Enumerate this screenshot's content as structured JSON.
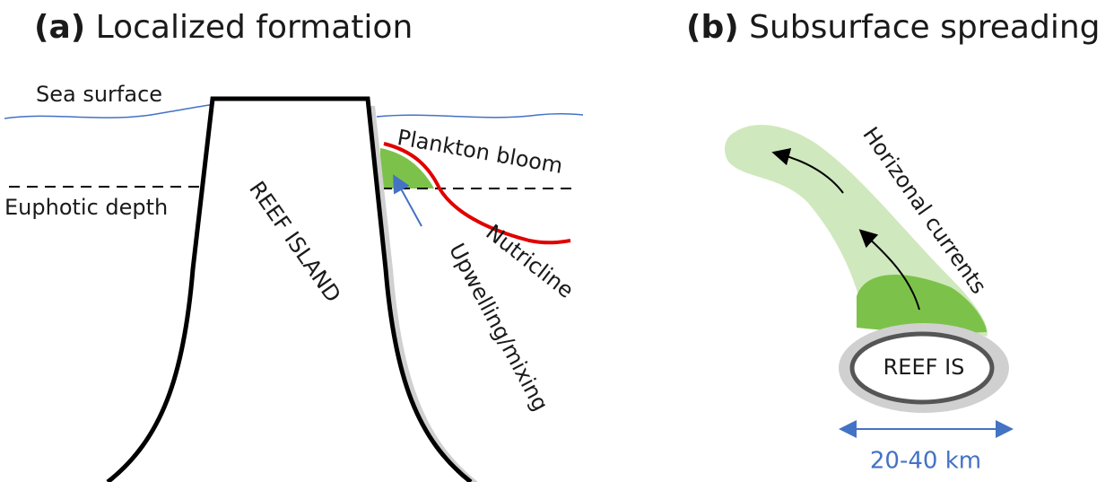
{
  "panels": [
    {
      "label": "(a)",
      "title": "Localized formation",
      "labels": {
        "sea_surface": "Sea surface",
        "euphotic_depth": "Euphotic depth",
        "island": "REEF ISLAND",
        "bloom": "Plankton bloom",
        "nutricline": "Nutricline",
        "upwelling": "Upwelling/mixing"
      }
    },
    {
      "label": "(b)",
      "title": "Subsurface spreading",
      "labels": {
        "currents": "Horizonal currents",
        "island": "REEF IS",
        "scale": "20-40 km"
      }
    }
  ]
}
